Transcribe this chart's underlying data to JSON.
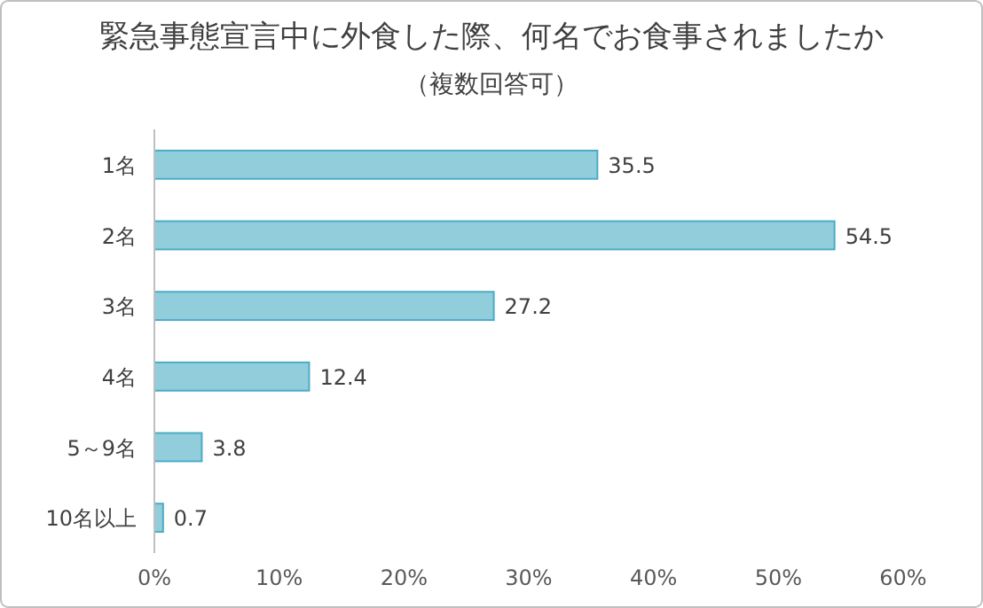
{
  "chart_data": {
    "type": "bar",
    "orientation": "horizontal",
    "title": "緊急事態宣言中に外食した際、何名でお食事されましたか",
    "subtitle": "（複数回答可）",
    "categories": [
      "1名",
      "2名",
      "3名",
      "4名",
      "5～9名",
      "10名以上"
    ],
    "values": [
      35.5,
      54.5,
      27.2,
      12.4,
      3.8,
      0.7
    ],
    "color": "#92cddc",
    "xlim": [
      0,
      60
    ],
    "xticks": [
      {
        "value": 0,
        "label": "0%"
      },
      {
        "value": 10,
        "label": "10%"
      },
      {
        "value": 20,
        "label": "20%"
      },
      {
        "value": 30,
        "label": "30%"
      },
      {
        "value": 40,
        "label": "40%"
      },
      {
        "value": 50,
        "label": "50%"
      },
      {
        "value": 60,
        "label": "60%"
      }
    ],
    "data_labels": true
  }
}
